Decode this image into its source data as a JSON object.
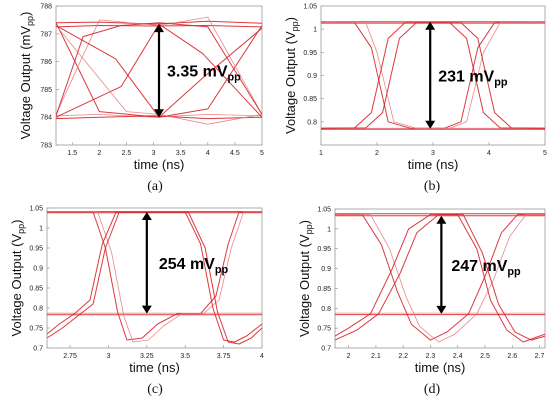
{
  "colors": {
    "trace": "#d9232a",
    "trace_light": "#e57b80",
    "arrow": "#000000",
    "frame": "#9a9a9a"
  },
  "chart_data": [
    {
      "type": "line",
      "panel_label": "(a)",
      "xlabel": "time (ns)",
      "ylabel": "Voltage Output",
      "ylabel_unit": "(mVpp)",
      "xlim": [
        1.2,
        5.0
      ],
      "ylim": [
        783.0,
        788.0
      ],
      "xticks": [
        1.5,
        2.0,
        2.5,
        3.0,
        3.5,
        4.0,
        4.5,
        5.0
      ],
      "xtick_labels": [
        "1.5",
        "2",
        "2.5",
        "3",
        "3.5",
        "4",
        "4.5",
        "5"
      ],
      "yticks": [
        783,
        784,
        785,
        786,
        787,
        788
      ],
      "ytick_labels": [
        "783",
        "784",
        "785",
        "786",
        "787",
        "788"
      ],
      "annotation": {
        "value": "3.35",
        "unit": "mV",
        "sub": "pp",
        "x": 3.1,
        "y_low": 784.0,
        "y_high": 787.35
      },
      "series": [
        {
          "x": [
            1.2,
            2.0,
            3.0,
            4.0,
            5.0
          ],
          "y": [
            787.4,
            787.42,
            787.35,
            787.45,
            787.38
          ]
        },
        {
          "x": [
            1.2,
            2.0,
            3.0,
            4.0,
            5.0
          ],
          "y": [
            787.25,
            787.3,
            787.28,
            787.3,
            787.25
          ]
        },
        {
          "x": [
            1.2,
            2.0,
            3.0,
            4.0,
            5.0
          ],
          "y": [
            784.05,
            784.1,
            784.0,
            784.1,
            784.05
          ]
        },
        {
          "x": [
            1.2,
            2.0,
            3.0,
            4.0,
            5.0
          ],
          "y": [
            783.95,
            784.0,
            784.05,
            783.95,
            784.0
          ]
        },
        {
          "x": [
            1.2,
            2.0,
            3.1,
            4.0,
            5.0
          ],
          "y": [
            787.4,
            784.2,
            784.0,
            784.3,
            787.3
          ]
        },
        {
          "x": [
            1.2,
            2.0,
            3.1,
            4.0,
            5.0
          ],
          "y": [
            784.1,
            787.5,
            787.3,
            787.6,
            784.1
          ]
        },
        {
          "x": [
            1.2,
            2.3,
            3.1,
            3.9,
            5.0
          ],
          "y": [
            787.3,
            786.1,
            784.0,
            785.4,
            787.2
          ]
        },
        {
          "x": [
            1.2,
            2.4,
            3.1,
            3.9,
            5.0
          ],
          "y": [
            784.0,
            785.1,
            787.35,
            786.3,
            784.0
          ]
        },
        {
          "x": [
            1.2,
            2.5,
            3.1,
            4.0,
            5.0
          ],
          "y": [
            787.3,
            784.2,
            784.1,
            783.75,
            784.1
          ]
        },
        {
          "x": [
            1.2,
            1.7,
            2.4,
            3.1,
            4.0,
            5.0
          ],
          "y": [
            784.05,
            786.9,
            787.3,
            787.4,
            787.25,
            784.1
          ]
        }
      ]
    },
    {
      "type": "line",
      "panel_label": "(b)",
      "xlabel": "time (ns)",
      "ylabel": "Voltage Output",
      "ylabel_unit": "(Vpp)",
      "xlim": [
        1.0,
        5.0
      ],
      "ylim": [
        0.75,
        1.05
      ],
      "xticks": [
        1,
        2,
        3,
        4,
        5
      ],
      "xtick_labels": [
        "1",
        "2",
        "3",
        "4",
        "5"
      ],
      "yticks": [
        0.8,
        0.85,
        0.9,
        0.95,
        1.0,
        1.05
      ],
      "ytick_labels": [
        "0.8",
        "0.85",
        "0.9",
        "0.95",
        "1",
        "1.05"
      ],
      "annotation": {
        "value": "231",
        "unit": "mV",
        "sub": "pp",
        "x": 2.95,
        "y_low": 0.785,
        "y_high": 1.016
      },
      "series": [
        {
          "x": [
            1.0,
            5.0
          ],
          "y": [
            1.016,
            1.016
          ]
        },
        {
          "x": [
            1.0,
            5.0
          ],
          "y": [
            1.013,
            1.013
          ]
        },
        {
          "x": [
            1.0,
            5.0
          ],
          "y": [
            0.786,
            0.786
          ]
        },
        {
          "x": [
            1.0,
            5.0
          ],
          "y": [
            0.784,
            0.784
          ]
        },
        {
          "x": [
            1.0,
            1.6,
            1.9,
            2.2,
            2.6,
            3.2,
            3.5,
            3.8,
            4.1,
            5.0
          ],
          "y": [
            1.016,
            1.014,
            0.96,
            0.8,
            0.786,
            0.786,
            0.8,
            0.96,
            1.014,
            1.016
          ]
        },
        {
          "x": [
            1.0,
            1.8,
            2.0,
            2.3,
            2.7,
            3.3,
            3.6,
            3.9,
            4.2,
            5.0
          ],
          "y": [
            1.016,
            1.014,
            0.95,
            0.8,
            0.786,
            0.786,
            0.8,
            0.95,
            1.014,
            1.016
          ]
        },
        {
          "x": [
            1.0,
            1.6,
            1.9,
            2.2,
            2.5,
            3.5,
            3.8,
            4.1,
            4.4,
            5.0
          ],
          "y": [
            0.786,
            0.787,
            0.82,
            0.98,
            1.014,
            1.014,
            0.98,
            0.82,
            0.787,
            0.786
          ]
        },
        {
          "x": [
            1.0,
            1.8,
            2.1,
            2.4,
            2.7,
            3.3,
            3.6,
            3.9,
            4.2,
            5.0
          ],
          "y": [
            0.786,
            0.787,
            0.82,
            0.98,
            1.014,
            1.014,
            0.98,
            0.82,
            0.787,
            0.786
          ]
        }
      ]
    },
    {
      "type": "line",
      "panel_label": "(c)",
      "xlabel": "time (ns)",
      "ylabel": "Voltage Output",
      "ylabel_unit": "(Vpp)",
      "xlim": [
        2.6,
        4.0
      ],
      "ylim": [
        0.7,
        1.05
      ],
      "xticks": [
        2.75,
        3.0,
        3.25,
        3.5,
        3.75,
        4.0
      ],
      "xtick_labels": [
        "2.75",
        "3",
        "3.25",
        "3.5",
        "3.75",
        "4"
      ],
      "yticks": [
        0.7,
        0.75,
        0.8,
        0.85,
        0.9,
        0.95,
        1.0,
        1.05
      ],
      "ytick_labels": [
        "0.7",
        "0.75",
        "0.8",
        "0.85",
        "0.9",
        "0.95",
        "1",
        "1.05"
      ],
      "annotation": {
        "value": "254",
        "unit": "mV",
        "sub": "pp",
        "x": 3.25,
        "y_low": 0.786,
        "y_high": 1.04
      },
      "series": [
        {
          "x": [
            2.6,
            4.0
          ],
          "y": [
            1.041,
            1.041
          ]
        },
        {
          "x": [
            2.6,
            4.0
          ],
          "y": [
            1.038,
            1.038
          ]
        },
        {
          "x": [
            2.6,
            4.0
          ],
          "y": [
            0.787,
            0.787
          ]
        },
        {
          "x": [
            2.6,
            4.0
          ],
          "y": [
            0.783,
            0.783
          ]
        },
        {
          "x": [
            2.6,
            2.9,
            2.98,
            3.06,
            3.12,
            3.22,
            3.32,
            3.45,
            3.6,
            3.7,
            3.78,
            3.85,
            4.0
          ],
          "y": [
            1.04,
            1.04,
            0.95,
            0.79,
            0.72,
            0.725,
            0.76,
            0.786,
            0.786,
            0.83,
            0.96,
            1.04,
            1.04
          ]
        },
        {
          "x": [
            2.6,
            2.93,
            3.02,
            3.1,
            3.16,
            3.26,
            3.36,
            3.48,
            3.62,
            3.72,
            3.8,
            3.88,
            4.0
          ],
          "y": [
            1.04,
            1.04,
            0.94,
            0.78,
            0.715,
            0.72,
            0.755,
            0.786,
            0.786,
            0.82,
            0.95,
            1.04,
            1.04
          ]
        },
        {
          "x": [
            2.6,
            2.68,
            2.78,
            2.88,
            2.96,
            3.05,
            3.2,
            3.5,
            3.6,
            3.68,
            3.75,
            3.82,
            3.9,
            4.0
          ],
          "y": [
            0.735,
            0.76,
            0.786,
            0.82,
            0.96,
            1.04,
            1.04,
            1.04,
            0.96,
            0.8,
            0.72,
            0.715,
            0.73,
            0.76
          ]
        },
        {
          "x": [
            2.6,
            2.7,
            2.8,
            2.9,
            2.98,
            3.07,
            3.2,
            3.52,
            3.63,
            3.71,
            3.78,
            3.85,
            3.93,
            4.0
          ],
          "y": [
            0.725,
            0.75,
            0.78,
            0.81,
            0.95,
            1.04,
            1.04,
            1.04,
            0.95,
            0.79,
            0.715,
            0.71,
            0.725,
            0.75
          ]
        }
      ]
    },
    {
      "type": "line",
      "panel_label": "(d)",
      "xlabel": "time (ns)",
      "ylabel": "Voltage Output",
      "ylabel_unit": "(Vpp)",
      "xlim": [
        1.95,
        2.72
      ],
      "ylim": [
        0.7,
        1.05
      ],
      "xticks": [
        2.0,
        2.1,
        2.2,
        2.3,
        2.4,
        2.5,
        2.6,
        2.7
      ],
      "xtick_labels": [
        "2",
        "2.1",
        "2.2",
        "2.3",
        "2.4",
        "2.5",
        "2.6",
        "2.7"
      ],
      "yticks": [
        0.7,
        0.75,
        0.8,
        0.85,
        0.9,
        0.95,
        1.0,
        1.05
      ],
      "ytick_labels": [
        "0.7",
        "0.75",
        "0.8",
        "0.85",
        "0.9",
        "0.95",
        "1",
        "1.05"
      ],
      "annotation": {
        "value": "247",
        "unit": "mV",
        "sub": "pp",
        "x": 2.34,
        "y_low": 0.786,
        "y_high": 1.033
      },
      "series": [
        {
          "x": [
            1.95,
            2.72
          ],
          "y": [
            1.038,
            1.038
          ]
        },
        {
          "x": [
            1.95,
            2.72
          ],
          "y": [
            1.033,
            1.033
          ]
        },
        {
          "x": [
            1.95,
            2.72
          ],
          "y": [
            0.788,
            0.788
          ]
        },
        {
          "x": [
            1.95,
            2.72
          ],
          "y": [
            0.784,
            0.784
          ]
        },
        {
          "x": [
            1.95,
            2.05,
            2.12,
            2.18,
            2.23,
            2.3,
            2.36,
            2.44,
            2.5,
            2.56,
            2.62,
            2.72
          ],
          "y": [
            1.036,
            1.036,
            0.96,
            0.84,
            0.76,
            0.72,
            0.74,
            0.786,
            0.88,
            0.99,
            1.036,
            1.036
          ]
        },
        {
          "x": [
            1.95,
            2.08,
            2.15,
            2.21,
            2.26,
            2.33,
            2.39,
            2.47,
            2.53,
            2.59,
            2.65,
            2.72
          ],
          "y": [
            1.036,
            1.036,
            0.95,
            0.83,
            0.755,
            0.715,
            0.735,
            0.786,
            0.87,
            0.98,
            1.036,
            1.036
          ]
        },
        {
          "x": [
            1.95,
            2.0,
            2.08,
            2.16,
            2.22,
            2.3,
            2.4,
            2.47,
            2.52,
            2.58,
            2.64,
            2.72
          ],
          "y": [
            0.73,
            0.75,
            0.786,
            0.9,
            1.0,
            1.036,
            1.036,
            0.95,
            0.82,
            0.745,
            0.715,
            0.735
          ]
        },
        {
          "x": [
            1.95,
            2.03,
            2.11,
            2.19,
            2.25,
            2.33,
            2.42,
            2.49,
            2.55,
            2.61,
            2.67,
            2.72
          ],
          "y": [
            0.72,
            0.745,
            0.786,
            0.89,
            0.99,
            1.036,
            1.036,
            0.94,
            0.81,
            0.74,
            0.72,
            0.73
          ]
        }
      ]
    }
  ]
}
